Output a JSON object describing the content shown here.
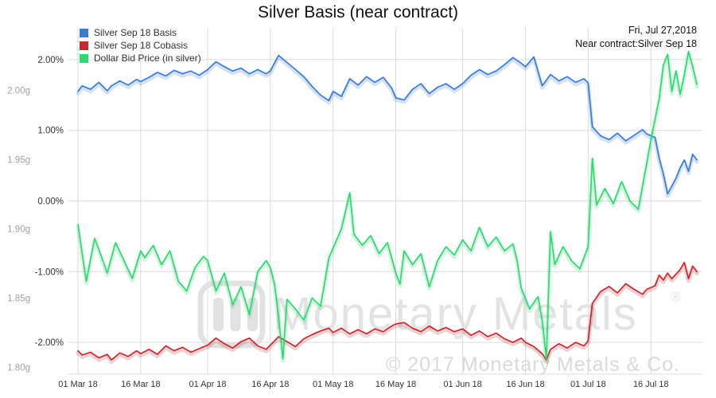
{
  "header": {
    "date": "Fri, Jul 27,2018",
    "contract": "Near contract:Silver Sep 18"
  },
  "watermark": {
    "logo": "monetary-metals-logo",
    "text": "Monetary Metals",
    "registered": "®",
    "copyright": "© 2017 Monetary Metals & Co."
  },
  "chart_data": {
    "type": "line",
    "title": "Silver Basis (near contract)",
    "legend_position": "top-left",
    "grid": true,
    "x_axis": {
      "tick_labels": [
        "01 Mar 18",
        "16 Mar 18",
        "01 Apr 18",
        "16 Apr 18",
        "01 May 18",
        "16 May 18",
        "01 Jun 18",
        "16 Jun 18",
        "01 Jul 18",
        "16 Jul 18"
      ],
      "tick_days": [
        0,
        15,
        31,
        46,
        61,
        76,
        92,
        107,
        122,
        137
      ],
      "range": [
        0,
        148
      ]
    },
    "y_percent": {
      "tick_labels": [
        "2.00%",
        "1.00%",
        "0.00%",
        "-1.00%",
        "-2.00%"
      ],
      "tick_values": [
        2,
        1,
        0,
        -1,
        -2
      ],
      "range": [
        -2.45,
        2.45
      ]
    },
    "y_grams": {
      "tick_labels": [
        "2.00g",
        "1.95g",
        "1.90g",
        "1.85g",
        "1.80g"
      ],
      "tick_values": [
        2.0,
        1.95,
        1.9,
        1.85,
        1.8
      ],
      "range": [
        1.795,
        2.045
      ]
    },
    "series": [
      {
        "name": "Silver Sep 18 Basis",
        "color": "#3a7ad9",
        "axis": "percent",
        "points": [
          [
            0,
            1.55
          ],
          [
            1,
            1.63
          ],
          [
            3,
            1.58
          ],
          [
            5,
            1.68
          ],
          [
            7,
            1.56
          ],
          [
            8,
            1.63
          ],
          [
            10,
            1.7
          ],
          [
            12,
            1.64
          ],
          [
            14,
            1.72
          ],
          [
            15,
            1.69
          ],
          [
            17,
            1.75
          ],
          [
            19,
            1.82
          ],
          [
            21,
            1.77
          ],
          [
            23,
            1.85
          ],
          [
            25,
            1.8
          ],
          [
            27,
            1.84
          ],
          [
            29,
            1.78
          ],
          [
            31,
            1.86
          ],
          [
            33,
            1.97
          ],
          [
            35,
            1.9
          ],
          [
            37,
            1.84
          ],
          [
            39,
            1.88
          ],
          [
            41,
            1.8
          ],
          [
            43,
            1.86
          ],
          [
            45,
            1.8
          ],
          [
            46,
            1.84
          ],
          [
            48,
            2.06
          ],
          [
            50,
            1.96
          ],
          [
            52,
            1.86
          ],
          [
            54,
            1.76
          ],
          [
            56,
            1.62
          ],
          [
            58,
            1.5
          ],
          [
            60,
            1.42
          ],
          [
            61,
            1.55
          ],
          [
            63,
            1.48
          ],
          [
            65,
            1.73
          ],
          [
            67,
            1.64
          ],
          [
            69,
            1.76
          ],
          [
            71,
            1.68
          ],
          [
            73,
            1.75
          ],
          [
            75,
            1.6
          ],
          [
            76,
            1.46
          ],
          [
            78,
            1.43
          ],
          [
            80,
            1.58
          ],
          [
            82,
            1.66
          ],
          [
            84,
            1.52
          ],
          [
            86,
            1.61
          ],
          [
            88,
            1.66
          ],
          [
            90,
            1.58
          ],
          [
            92,
            1.66
          ],
          [
            94,
            1.78
          ],
          [
            96,
            1.86
          ],
          [
            98,
            1.79
          ],
          [
            100,
            1.84
          ],
          [
            102,
            1.93
          ],
          [
            104,
            2.03
          ],
          [
            106,
            1.95
          ],
          [
            107,
            1.9
          ],
          [
            109,
            2.04
          ],
          [
            111,
            1.63
          ],
          [
            113,
            1.79
          ],
          [
            115,
            1.7
          ],
          [
            117,
            1.76
          ],
          [
            119,
            1.68
          ],
          [
            121,
            1.73
          ],
          [
            122,
            1.67
          ],
          [
            123,
            1.05
          ],
          [
            125,
            0.92
          ],
          [
            127,
            0.87
          ],
          [
            129,
            0.96
          ],
          [
            131,
            0.85
          ],
          [
            133,
            0.93
          ],
          [
            135,
            1.01
          ],
          [
            136,
            0.95
          ],
          [
            138,
            0.9
          ],
          [
            139,
            0.6
          ],
          [
            140,
            0.38
          ],
          [
            141,
            0.1
          ],
          [
            143,
            0.32
          ],
          [
            144,
            0.47
          ],
          [
            145,
            0.58
          ],
          [
            146,
            0.42
          ],
          [
            147,
            0.66
          ],
          [
            148,
            0.58
          ]
        ]
      },
      {
        "name": "Silver Sep 18 Cobasis",
        "color": "#c42b30",
        "axis": "percent",
        "points": [
          [
            0,
            -2.12
          ],
          [
            1,
            -2.18
          ],
          [
            3,
            -2.14
          ],
          [
            5,
            -2.22
          ],
          [
            7,
            -2.17
          ],
          [
            8,
            -2.25
          ],
          [
            10,
            -2.15
          ],
          [
            12,
            -2.2
          ],
          [
            14,
            -2.12
          ],
          [
            15,
            -2.16
          ],
          [
            17,
            -2.1
          ],
          [
            19,
            -2.17
          ],
          [
            21,
            -2.05
          ],
          [
            23,
            -2.12
          ],
          [
            25,
            -2.07
          ],
          [
            27,
            -2.14
          ],
          [
            29,
            -2.09
          ],
          [
            31,
            -2.04
          ],
          [
            33,
            -1.94
          ],
          [
            35,
            -2.02
          ],
          [
            37,
            -2.08
          ],
          [
            39,
            -1.99
          ],
          [
            41,
            -1.94
          ],
          [
            43,
            -2.05
          ],
          [
            45,
            -2.1
          ],
          [
            46,
            -2.04
          ],
          [
            48,
            -1.92
          ],
          [
            50,
            -1.99
          ],
          [
            52,
            -2.06
          ],
          [
            54,
            -1.95
          ],
          [
            56,
            -1.89
          ],
          [
            58,
            -1.84
          ],
          [
            60,
            -1.8
          ],
          [
            61,
            -1.86
          ],
          [
            63,
            -1.8
          ],
          [
            65,
            -1.88
          ],
          [
            67,
            -1.82
          ],
          [
            69,
            -1.88
          ],
          [
            71,
            -1.81
          ],
          [
            73,
            -1.85
          ],
          [
            75,
            -1.77
          ],
          [
            76,
            -1.74
          ],
          [
            78,
            -1.72
          ],
          [
            80,
            -1.8
          ],
          [
            82,
            -1.85
          ],
          [
            84,
            -1.77
          ],
          [
            86,
            -1.84
          ],
          [
            88,
            -1.79
          ],
          [
            90,
            -1.85
          ],
          [
            92,
            -1.81
          ],
          [
            94,
            -1.9
          ],
          [
            96,
            -1.84
          ],
          [
            98,
            -1.92
          ],
          [
            100,
            -1.87
          ],
          [
            102,
            -1.95
          ],
          [
            104,
            -2.0
          ],
          [
            106,
            -1.94
          ],
          [
            107,
            -2.0
          ],
          [
            109,
            -2.06
          ],
          [
            111,
            -2.16
          ],
          [
            112,
            -2.25
          ],
          [
            113,
            -2.1
          ],
          [
            115,
            -2.02
          ],
          [
            117,
            -2.08
          ],
          [
            119,
            -2.0
          ],
          [
            121,
            -2.05
          ],
          [
            122,
            -1.98
          ],
          [
            123,
            -1.45
          ],
          [
            125,
            -1.28
          ],
          [
            127,
            -1.21
          ],
          [
            129,
            -1.3
          ],
          [
            131,
            -1.17
          ],
          [
            133,
            -1.25
          ],
          [
            135,
            -1.32
          ],
          [
            136,
            -1.25
          ],
          [
            138,
            -1.2
          ],
          [
            139,
            -1.05
          ],
          [
            140,
            -1.12
          ],
          [
            141,
            -1.02
          ],
          [
            142,
            -1.1
          ],
          [
            144,
            -0.97
          ],
          [
            145,
            -0.87
          ],
          [
            146,
            -1.1
          ],
          [
            147,
            -0.92
          ],
          [
            148,
            -1.0
          ]
        ]
      },
      {
        "name": "Dollar Bid Price (in silver)",
        "color": "#2fd871",
        "axis": "grams",
        "points": [
          [
            0,
            1.903
          ],
          [
            1,
            1.882
          ],
          [
            2,
            1.862
          ],
          [
            4,
            1.893
          ],
          [
            5,
            1.885
          ],
          [
            7,
            1.868
          ],
          [
            9,
            1.89
          ],
          [
            11,
            1.877
          ],
          [
            13,
            1.864
          ],
          [
            15,
            1.884
          ],
          [
            16,
            1.879
          ],
          [
            18,
            1.888
          ],
          [
            20,
            1.874
          ],
          [
            22,
            1.884
          ],
          [
            24,
            1.862
          ],
          [
            26,
            1.855
          ],
          [
            28,
            1.872
          ],
          [
            30,
            1.88
          ],
          [
            31,
            1.877
          ],
          [
            33,
            1.855
          ],
          [
            35,
            1.868
          ],
          [
            37,
            1.845
          ],
          [
            39,
            1.858
          ],
          [
            41,
            1.838
          ],
          [
            43,
            1.869
          ],
          [
            45,
            1.877
          ],
          [
            46,
            1.872
          ],
          [
            47,
            1.86
          ],
          [
            48,
            1.835
          ],
          [
            49,
            1.806
          ],
          [
            50,
            1.849
          ],
          [
            52,
            1.842
          ],
          [
            54,
            1.834
          ],
          [
            56,
            1.85
          ],
          [
            58,
            1.844
          ],
          [
            59,
            1.861
          ],
          [
            60,
            1.879
          ],
          [
            61,
            1.886
          ],
          [
            63,
            1.9
          ],
          [
            65,
            1.926
          ],
          [
            66,
            1.896
          ],
          [
            68,
            1.888
          ],
          [
            70,
            1.895
          ],
          [
            72,
            1.882
          ],
          [
            74,
            1.89
          ],
          [
            76,
            1.868
          ],
          [
            77,
            1.86
          ],
          [
            78,
            1.884
          ],
          [
            80,
            1.874
          ],
          [
            82,
            1.882
          ],
          [
            84,
            1.858
          ],
          [
            86,
            1.877
          ],
          [
            88,
            1.887
          ],
          [
            90,
            1.881
          ],
          [
            92,
            1.892
          ],
          [
            94,
            1.884
          ],
          [
            96,
            1.901
          ],
          [
            98,
            1.887
          ],
          [
            100,
            1.894
          ],
          [
            102,
            1.884
          ],
          [
            104,
            1.889
          ],
          [
            105,
            1.877
          ],
          [
            106,
            1.857
          ],
          [
            108,
            1.842
          ],
          [
            110,
            1.851
          ],
          [
            111,
            1.834
          ],
          [
            112,
            1.806
          ],
          [
            113,
            1.898
          ],
          [
            114,
            1.874
          ],
          [
            116,
            1.887
          ],
          [
            118,
            1.877
          ],
          [
            120,
            1.871
          ],
          [
            122,
            1.887
          ],
          [
            123,
            1.951
          ],
          [
            124,
            1.917
          ],
          [
            126,
            1.929
          ],
          [
            128,
            1.918
          ],
          [
            130,
            1.934
          ],
          [
            132,
            1.92
          ],
          [
            134,
            1.914
          ],
          [
            136,
            1.947
          ],
          [
            137,
            1.964
          ],
          [
            139,
            1.994
          ],
          [
            140,
            2.018
          ],
          [
            141,
            2.026
          ],
          [
            142,
            1.999
          ],
          [
            143,
            2.014
          ],
          [
            144,
            1.997
          ],
          [
            145,
            2.011
          ],
          [
            146,
            2.028
          ],
          [
            147,
            2.017
          ],
          [
            148,
            2.004
          ]
        ]
      }
    ]
  }
}
